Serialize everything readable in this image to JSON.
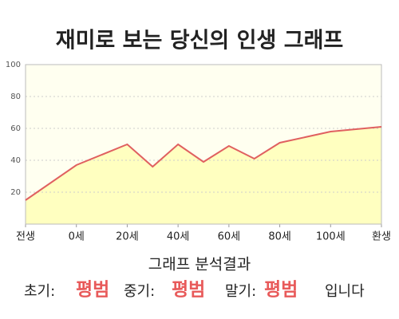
{
  "chart_data": {
    "type": "line",
    "title": "재미로 보는 당신의 인생 그래프",
    "x": [
      0,
      2,
      4,
      5,
      6,
      7,
      8,
      9,
      10,
      12,
      14
    ],
    "values": [
      15,
      37,
      50,
      36,
      50,
      39,
      49,
      41,
      51,
      58,
      61
    ],
    "color": "#e06060",
    "fill": "#ffffc0",
    "xlim": [
      0,
      14
    ],
    "xticks": [
      {
        "value": 0,
        "label": "전생"
      },
      {
        "value": 2,
        "label": "0세"
      },
      {
        "value": 4,
        "label": "20세"
      },
      {
        "value": 6,
        "label": "40세"
      },
      {
        "value": 8,
        "label": "60세"
      },
      {
        "value": 10,
        "label": "80세"
      },
      {
        "value": 12,
        "label": "100세"
      },
      {
        "value": 14,
        "label": "환생"
      }
    ],
    "ylim": [
      0,
      100
    ],
    "yticks": [
      20,
      40,
      60,
      80,
      100
    ],
    "grid": true
  },
  "result": {
    "heading": "그래프 분석결과",
    "items": [
      {
        "label": "초기:",
        "value": "평범"
      },
      {
        "label": "중기:",
        "value": "평범"
      },
      {
        "label": "말기:",
        "value": "평범"
      }
    ],
    "ending": "입니다"
  }
}
